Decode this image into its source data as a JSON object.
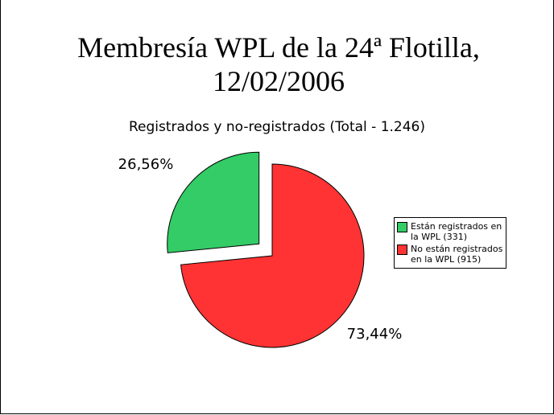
{
  "chart_data": {
    "type": "pie",
    "title": "Membresía WPL de la 24ª Flotilla, 12/02/2006",
    "subtitle": "Registrados y no-registrados (Total - 1.246)",
    "categories": [
      "Están registrados en la WPL (331)",
      "No están registrados en la WPL (915)"
    ],
    "values": [
      26.56,
      73.44
    ],
    "value_labels": [
      "26,56%",
      "73,44%"
    ],
    "colors": [
      "#33cc66",
      "#ff3333"
    ],
    "legend": "right"
  }
}
